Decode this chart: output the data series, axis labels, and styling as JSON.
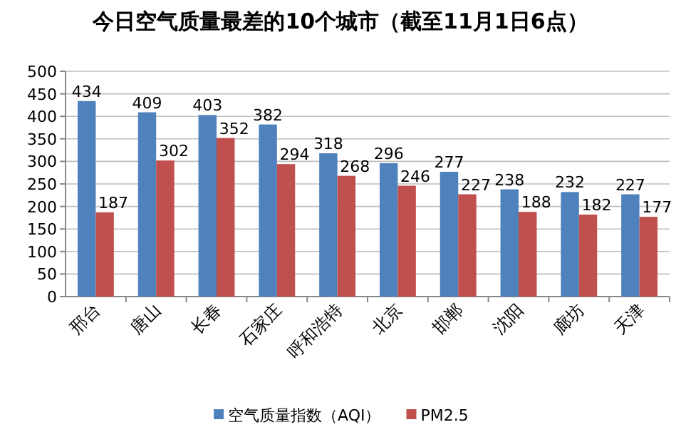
{
  "chart_data": {
    "type": "bar",
    "title": "今日空气质量最差的10个城市（截至11月1日6点）",
    "categories": [
      "邢台",
      "唐山",
      "长春",
      "石家庄",
      "呼和浩特",
      "北京",
      "邯郸",
      "沈阳",
      "廊坊",
      "天津"
    ],
    "series": [
      {
        "name": "空气质量指数（AQI）",
        "color": "#4f81bd",
        "values": [
          434,
          409,
          403,
          382,
          318,
          296,
          277,
          238,
          232,
          227
        ]
      },
      {
        "name": "PM2.5",
        "color": "#c0504d",
        "values": [
          187,
          302,
          352,
          294,
          268,
          246,
          227,
          188,
          182,
          177
        ]
      }
    ],
    "ylim": [
      0,
      500
    ],
    "yticks": [
      0,
      50,
      100,
      150,
      200,
      250,
      300,
      350,
      400,
      450,
      500
    ],
    "grid": "y",
    "legend": "bottom",
    "data_labels": true
  }
}
